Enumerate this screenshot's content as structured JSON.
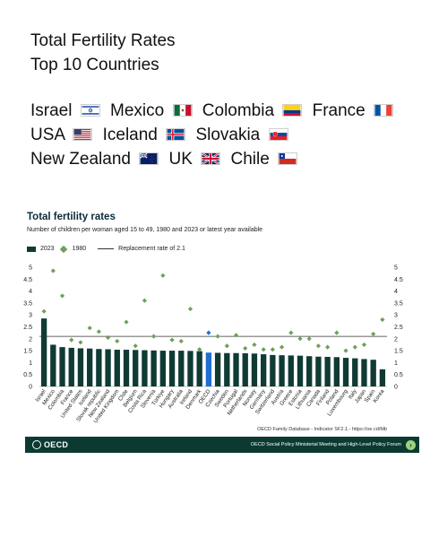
{
  "header": {
    "line1": "Total Fertility Rates",
    "line2": "Top 10 Countries"
  },
  "countries": [
    {
      "name": "Israel",
      "flag": "israel-flag"
    },
    {
      "name": "Mexico",
      "flag": "mexico-flag"
    },
    {
      "name": "Colombia",
      "flag": "colombia-flag"
    },
    {
      "name": "France",
      "flag": "france-flag"
    },
    {
      "name": "USA",
      "flag": "usa-flag"
    },
    {
      "name": "Iceland",
      "flag": "iceland-flag"
    },
    {
      "name": "Slovakia",
      "flag": "slovakia-flag"
    },
    {
      "name": "New Zealand",
      "flag": "new-zealand-flag"
    },
    {
      "name": "UK",
      "flag": "uk-flag"
    },
    {
      "name": "Chile",
      "flag": "chile-flag"
    }
  ],
  "chart_data": {
    "type": "bar",
    "title": "Total fertility rates",
    "subtitle": "Number of children per woman aged 15 to 49, 1980 and 2023 or latest year available",
    "ylim": [
      0,
      5
    ],
    "yticks": [
      "0",
      "0.5",
      "1",
      "1.5",
      "2",
      "2.5",
      "3",
      "3.5",
      "4",
      "4.5",
      "5"
    ],
    "reference_line": {
      "label": "Replacement rate of 2.1",
      "value": 2.1
    },
    "highlight_category": "OECD",
    "categories": [
      "Israel",
      "Mexico",
      "Colombia",
      "France",
      "United States",
      "Iceland",
      "Slovak republic",
      "New Zealand",
      "United Kingdom",
      "Chile",
      "Belgium",
      "Costa Rica",
      "Slovenia",
      "Türkiye",
      "Hungary",
      "Australia",
      "Ireland",
      "Denmark",
      "OECD",
      "Czechia",
      "Sweden",
      "Portugal",
      "Netherlands",
      "Norway",
      "Germany",
      "Switzerland",
      "Austria",
      "Greece",
      "Estonia",
      "Lithuania",
      "Canada",
      "Finland",
      "Poland",
      "Luxembourg",
      "Italy",
      "Japan",
      "Spain",
      "Korea"
    ],
    "series": [
      {
        "name": "2023",
        "values": [
          2.85,
          1.75,
          1.65,
          1.62,
          1.6,
          1.59,
          1.57,
          1.56,
          1.54,
          1.54,
          1.53,
          1.52,
          1.51,
          1.5,
          1.5,
          1.5,
          1.49,
          1.48,
          1.42,
          1.41,
          1.4,
          1.4,
          1.39,
          1.38,
          1.35,
          1.32,
          1.31,
          1.3,
          1.29,
          1.27,
          1.25,
          1.24,
          1.23,
          1.2,
          1.18,
          1.15,
          1.12,
          0.72
        ]
      },
      {
        "name": "1980",
        "values": [
          3.15,
          4.85,
          3.8,
          1.95,
          1.85,
          2.45,
          2.3,
          2.05,
          1.9,
          2.7,
          1.7,
          3.6,
          2.1,
          4.65,
          1.95,
          1.9,
          3.25,
          1.55,
          2.25,
          2.1,
          1.7,
          2.15,
          1.6,
          1.75,
          1.55,
          1.55,
          1.65,
          2.25,
          2.0,
          2.0,
          1.7,
          1.65,
          2.25,
          1.5,
          1.65,
          1.75,
          2.2,
          2.8
        ]
      }
    ]
  },
  "source": "OECD Family Database - Indicator SF2.1.- https://oe.cd/fdb",
  "footer": {
    "logo": "OECD",
    "text": "OECD Social Policy Ministerial Meeting and High-Level Policy Forum",
    "arrow": "›"
  },
  "colors": {
    "bar": "#0f3b34",
    "highlight_bar": "#1f6fd1",
    "marker": "#6fa05a",
    "highlight_marker": "#1f6fd1",
    "footer_bg": "#0c3a33"
  }
}
